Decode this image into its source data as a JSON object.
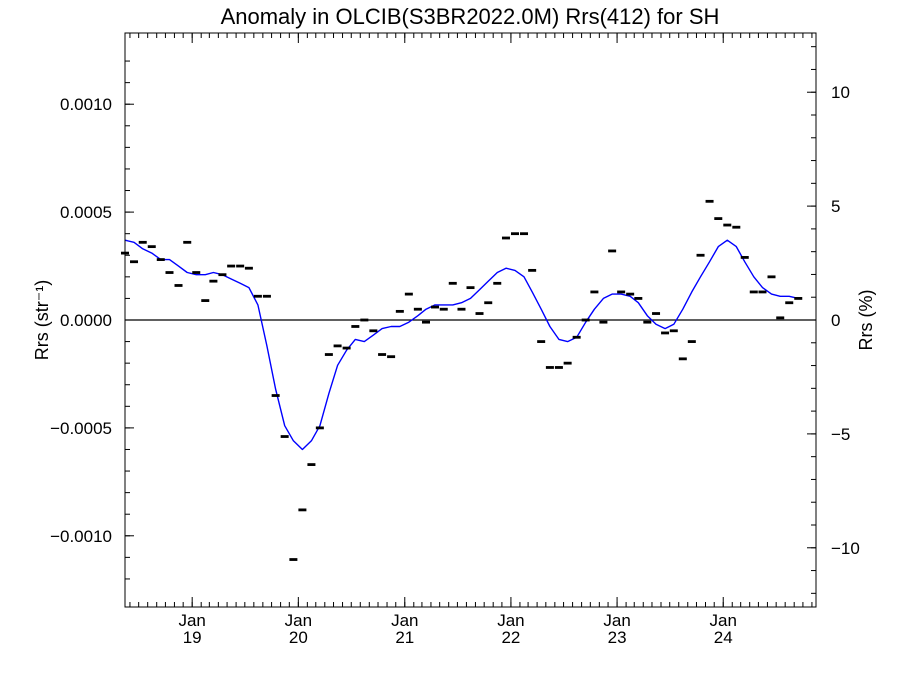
{
  "chart_data": {
    "type": "line",
    "title": "Anomaly in OLCIB(S3BR2022.0M) Rrs(412) for SH",
    "ylabel": "Rrs (str⁻¹)",
    "y2label": "Rrs (%)",
    "xlabel": "",
    "xlim": [
      "2018-05-15",
      "2024-11-15"
    ],
    "ylim": [
      -0.00133,
      0.00133
    ],
    "y2lim": [
      -12.6,
      12.6
    ],
    "xticks": [
      {
        "date": "2019-01-01",
        "label1": "Jan",
        "label2": "19"
      },
      {
        "date": "2020-01-01",
        "label1": "Jan",
        "label2": "20"
      },
      {
        "date": "2021-01-01",
        "label1": "Jan",
        "label2": "21"
      },
      {
        "date": "2022-01-01",
        "label1": "Jan",
        "label2": "22"
      },
      {
        "date": "2023-01-01",
        "label1": "Jan",
        "label2": "23"
      },
      {
        "date": "2024-01-01",
        "label1": "Jan",
        "label2": "24"
      }
    ],
    "yticks": [
      {
        "value": -0.001,
        "label": "−0.0010"
      },
      {
        "value": -0.0005,
        "label": "−0.0005"
      },
      {
        "value": 0.0,
        "label": "0.0000"
      },
      {
        "value": 0.0005,
        "label": "0.0005"
      },
      {
        "value": 0.001,
        "label": "0.0010"
      }
    ],
    "y2ticks": [
      {
        "value": -10,
        "label": "−10"
      },
      {
        "value": -5,
        "label": "−5"
      },
      {
        "value": 0,
        "label": "0"
      },
      {
        "value": 5,
        "label": "5"
      },
      {
        "value": 10,
        "label": "10"
      }
    ],
    "grid": false,
    "zero_line": true,
    "series": [
      {
        "kind": "monthly-markers",
        "color": "#000000",
        "points": [
          [
            "2018-05",
            0.00031
          ],
          [
            "2018-06",
            0.00027
          ],
          [
            "2018-07",
            0.00036
          ],
          [
            "2018-08",
            0.00034
          ],
          [
            "2018-09",
            0.00028
          ],
          [
            "2018-10",
            0.00022
          ],
          [
            "2018-11",
            0.00016
          ],
          [
            "2018-12",
            0.00036
          ],
          [
            "2019-01",
            0.00022
          ],
          [
            "2019-02",
            9e-05
          ],
          [
            "2019-03",
            0.00018
          ],
          [
            "2019-04",
            0.00021
          ],
          [
            "2019-05",
            0.00025
          ],
          [
            "2019-06",
            0.00025
          ],
          [
            "2019-07",
            0.00024
          ],
          [
            "2019-08",
            0.00011
          ],
          [
            "2019-09",
            0.00011
          ],
          [
            "2019-10",
            -0.00035
          ],
          [
            "2019-11",
            -0.00054
          ],
          [
            "2019-12",
            -0.00111
          ],
          [
            "2020-01",
            -0.00088
          ],
          [
            "2020-02",
            -0.00067
          ],
          [
            "2020-03",
            -0.0005
          ],
          [
            "2020-04",
            -0.00016
          ],
          [
            "2020-05",
            -0.00012
          ],
          [
            "2020-06",
            -0.00013
          ],
          [
            "2020-07",
            -3e-05
          ],
          [
            "2020-08",
            0.0
          ],
          [
            "2020-09",
            -5e-05
          ],
          [
            "2020-10",
            -0.00016
          ],
          [
            "2020-11",
            -0.00017
          ],
          [
            "2020-12",
            4e-05
          ],
          [
            "2021-01",
            0.00012
          ],
          [
            "2021-02",
            5e-05
          ],
          [
            "2021-03",
            -1e-05
          ],
          [
            "2021-04",
            6e-05
          ],
          [
            "2021-05",
            5e-05
          ],
          [
            "2021-06",
            0.00017
          ],
          [
            "2021-07",
            5e-05
          ],
          [
            "2021-08",
            0.00015
          ],
          [
            "2021-09",
            3e-05
          ],
          [
            "2021-10",
            8e-05
          ],
          [
            "2021-11",
            0.00017
          ],
          [
            "2021-12",
            0.00038
          ],
          [
            "2022-01",
            0.0004
          ],
          [
            "2022-02",
            0.0004
          ],
          [
            "2022-03",
            0.00023
          ],
          [
            "2022-04",
            -0.0001
          ],
          [
            "2022-05",
            -0.00022
          ],
          [
            "2022-06",
            -0.00022
          ],
          [
            "2022-07",
            -0.0002
          ],
          [
            "2022-08",
            -8e-05
          ],
          [
            "2022-09",
            0.0
          ],
          [
            "2022-10",
            0.00013
          ],
          [
            "2022-11",
            -1e-05
          ],
          [
            "2022-12",
            0.00032
          ],
          [
            "2023-01",
            0.00013
          ],
          [
            "2023-02",
            0.00012
          ],
          [
            "2023-03",
            0.0001
          ],
          [
            "2023-04",
            -1e-05
          ],
          [
            "2023-05",
            3e-05
          ],
          [
            "2023-06",
            -6e-05
          ],
          [
            "2023-07",
            -5e-05
          ],
          [
            "2023-08",
            -0.00018
          ],
          [
            "2023-09",
            -0.0001
          ],
          [
            "2023-10",
            0.0003
          ],
          [
            "2023-11",
            0.00055
          ],
          [
            "2023-12",
            0.00047
          ],
          [
            "2024-01",
            0.00044
          ],
          [
            "2024-02",
            0.00043
          ],
          [
            "2024-03",
            0.00029
          ],
          [
            "2024-04",
            0.00013
          ],
          [
            "2024-05",
            0.00013
          ],
          [
            "2024-06",
            0.0002
          ],
          [
            "2024-07",
            1e-05
          ],
          [
            "2024-08",
            8e-05
          ],
          [
            "2024-09",
            0.0001
          ]
        ]
      },
      {
        "kind": "smoothed-line",
        "color": "#0000ff",
        "points": [
          [
            "2018-05",
            0.00037
          ],
          [
            "2018-06",
            0.00036
          ],
          [
            "2018-07",
            0.00033
          ],
          [
            "2018-08",
            0.00031
          ],
          [
            "2018-09",
            0.00028
          ],
          [
            "2018-10",
            0.00028
          ],
          [
            "2018-11",
            0.00025
          ],
          [
            "2018-12",
            0.00022
          ],
          [
            "2019-01",
            0.00021
          ],
          [
            "2019-02",
            0.00021
          ],
          [
            "2019-03",
            0.00022
          ],
          [
            "2019-04",
            0.00021
          ],
          [
            "2019-05",
            0.00019
          ],
          [
            "2019-06",
            0.00017
          ],
          [
            "2019-07",
            0.00015
          ],
          [
            "2019-08",
            7e-05
          ],
          [
            "2019-09",
            -0.00012
          ],
          [
            "2019-10",
            -0.00032
          ],
          [
            "2019-11",
            -0.00049
          ],
          [
            "2019-12",
            -0.00056
          ],
          [
            "2020-01",
            -0.0006
          ],
          [
            "2020-02",
            -0.00056
          ],
          [
            "2020-03",
            -0.00049
          ],
          [
            "2020-04",
            -0.00034
          ],
          [
            "2020-05",
            -0.00021
          ],
          [
            "2020-06",
            -0.00014
          ],
          [
            "2020-07",
            -9e-05
          ],
          [
            "2020-08",
            -0.0001
          ],
          [
            "2020-09",
            -7e-05
          ],
          [
            "2020-10",
            -4e-05
          ],
          [
            "2020-11",
            -3e-05
          ],
          [
            "2020-12",
            -3e-05
          ],
          [
            "2021-01",
            -1e-05
          ],
          [
            "2021-02",
            2e-05
          ],
          [
            "2021-03",
            5e-05
          ],
          [
            "2021-04",
            7e-05
          ],
          [
            "2021-05",
            7e-05
          ],
          [
            "2021-06",
            7e-05
          ],
          [
            "2021-07",
            8e-05
          ],
          [
            "2021-08",
            0.0001
          ],
          [
            "2021-09",
            0.00014
          ],
          [
            "2021-10",
            0.00018
          ],
          [
            "2021-11",
            0.00022
          ],
          [
            "2021-12",
            0.00024
          ],
          [
            "2022-01",
            0.00023
          ],
          [
            "2022-02",
            0.0002
          ],
          [
            "2022-03",
            0.00013
          ],
          [
            "2022-04",
            5e-05
          ],
          [
            "2022-05",
            -3e-05
          ],
          [
            "2022-06",
            -9e-05
          ],
          [
            "2022-07",
            -0.0001
          ],
          [
            "2022-08",
            -8e-05
          ],
          [
            "2022-09",
            -1e-05
          ],
          [
            "2022-10",
            5e-05
          ],
          [
            "2022-11",
            0.0001
          ],
          [
            "2022-12",
            0.00012
          ],
          [
            "2023-01",
            0.00012
          ],
          [
            "2023-02",
            0.00011
          ],
          [
            "2023-03",
            8e-05
          ],
          [
            "2023-04",
            2e-05
          ],
          [
            "2023-05",
            -2e-05
          ],
          [
            "2023-06",
            -4e-05
          ],
          [
            "2023-07",
            -2e-05
          ],
          [
            "2023-08",
            5e-05
          ],
          [
            "2023-09",
            0.00013
          ],
          [
            "2023-10",
            0.0002
          ],
          [
            "2023-11",
            0.00027
          ],
          [
            "2023-12",
            0.00034
          ],
          [
            "2024-01",
            0.00037
          ],
          [
            "2024-02",
            0.00034
          ],
          [
            "2024-03",
            0.00027
          ],
          [
            "2024-04",
            0.0002
          ],
          [
            "2024-05",
            0.00015
          ],
          [
            "2024-06",
            0.00012
          ],
          [
            "2024-07",
            0.00011
          ],
          [
            "2024-08",
            0.00011
          ],
          [
            "2024-09",
            0.0001
          ]
        ]
      }
    ]
  }
}
